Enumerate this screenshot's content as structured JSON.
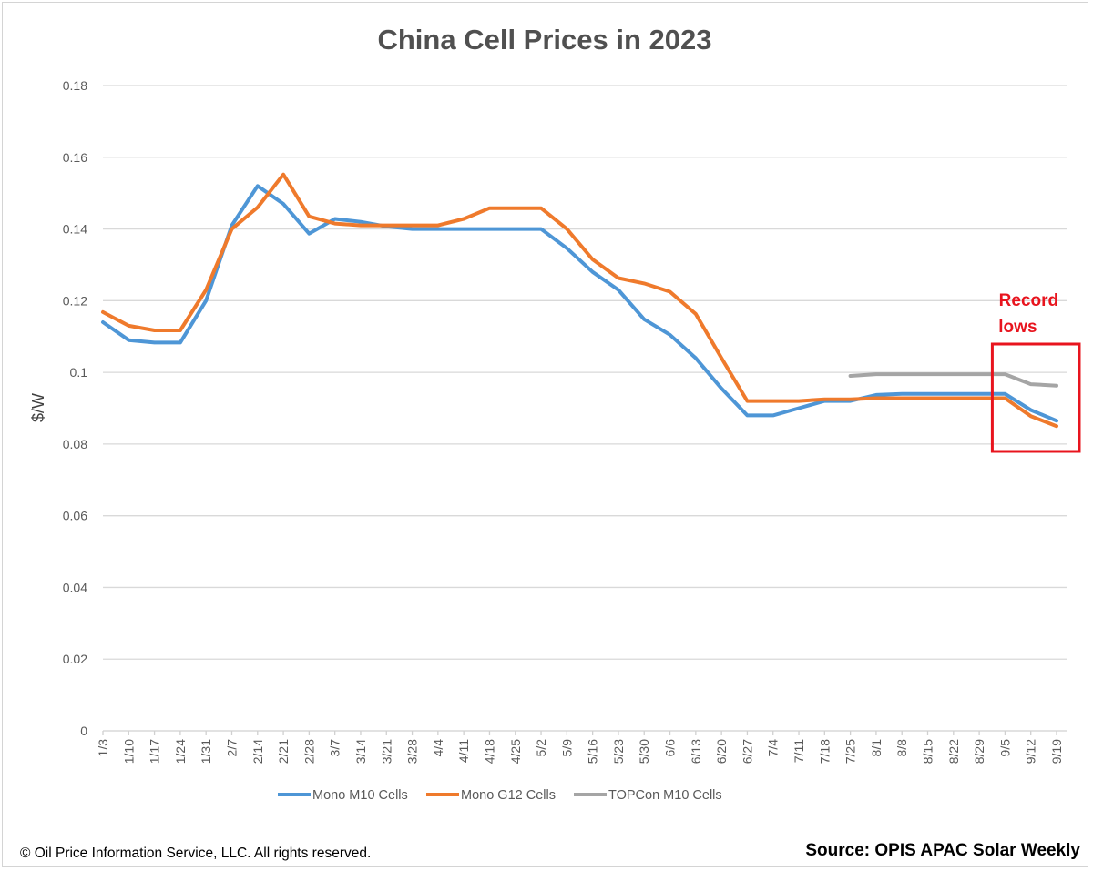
{
  "footer": {
    "copyright": "© Oil Price Information Service, LLC.  All rights reserved.",
    "source": "Source: OPIS APAC Solar Weekly"
  },
  "chart_data": {
    "type": "line",
    "title": "China Cell Prices in 2023",
    "xlabel": "",
    "ylabel": "$/W",
    "ylim": [
      0,
      0.18
    ],
    "yticks": [
      0,
      0.02,
      0.04,
      0.06,
      0.08,
      0.1,
      0.12,
      0.14,
      0.16,
      0.18
    ],
    "ytick_labels": [
      "0",
      "0.02",
      "0.04",
      "0.06",
      "0.08",
      "0.1",
      "0.12",
      "0.14",
      "0.16",
      "0.18"
    ],
    "grid": true,
    "legend_position": "bottom",
    "categories": [
      "1/3",
      "1/10",
      "1/17",
      "1/24",
      "1/31",
      "2/7",
      "2/14",
      "2/21",
      "2/28",
      "3/7",
      "3/14",
      "3/21",
      "3/28",
      "4/4",
      "4/11",
      "4/18",
      "4/25",
      "5/2",
      "5/9",
      "5/16",
      "5/23",
      "5/30",
      "6/6",
      "6/13",
      "6/20",
      "6/27",
      "7/4",
      "7/11",
      "7/18",
      "7/25",
      "8/1",
      "8/8",
      "8/15",
      "8/22",
      "8/29",
      "9/5",
      "9/12",
      "9/19"
    ],
    "series": [
      {
        "name": "Mono M10 Cells",
        "color": "#4e96d6",
        "values": [
          0.114,
          0.109,
          0.1083,
          0.1083,
          0.12,
          0.141,
          0.152,
          0.147,
          0.1387,
          0.1428,
          0.142,
          0.1407,
          0.14,
          0.14,
          0.14,
          0.14,
          0.14,
          0.14,
          0.1346,
          0.128,
          0.123,
          0.1148,
          0.1105,
          0.104,
          0.0955,
          0.088,
          0.088,
          0.09,
          0.092,
          0.092,
          0.0937,
          0.094,
          0.094,
          0.094,
          0.094,
          0.094,
          0.0895,
          0.0865
        ]
      },
      {
        "name": "Mono G12 Cells",
        "color": "#ef7a2c",
        "values": [
          0.1168,
          0.113,
          0.1117,
          0.1117,
          0.123,
          0.14,
          0.146,
          0.1552,
          0.1435,
          0.1415,
          0.141,
          0.141,
          0.141,
          0.141,
          0.1428,
          0.1458,
          0.1458,
          0.1458,
          0.14,
          0.1315,
          0.1263,
          0.1248,
          0.1225,
          0.1163,
          0.104,
          0.092,
          0.092,
          0.092,
          0.0925,
          0.0925,
          0.0928,
          0.0928,
          0.0928,
          0.0928,
          0.0928,
          0.0928,
          0.0878,
          0.085
        ]
      },
      {
        "name": "TOPCon M10 Cells",
        "color": "#a5a5a5",
        "values": [
          null,
          null,
          null,
          null,
          null,
          null,
          null,
          null,
          null,
          null,
          null,
          null,
          null,
          null,
          null,
          null,
          null,
          null,
          null,
          null,
          null,
          null,
          null,
          null,
          null,
          null,
          null,
          null,
          null,
          0.099,
          0.0995,
          0.0995,
          0.0995,
          0.0995,
          0.0995,
          0.0995,
          0.0967,
          0.0963
        ]
      }
    ],
    "annotations": [
      {
        "text": [
          "Record",
          "lows"
        ],
        "color": "#e8141e",
        "box_from": "9/5",
        "box_to": "9/19"
      }
    ]
  }
}
